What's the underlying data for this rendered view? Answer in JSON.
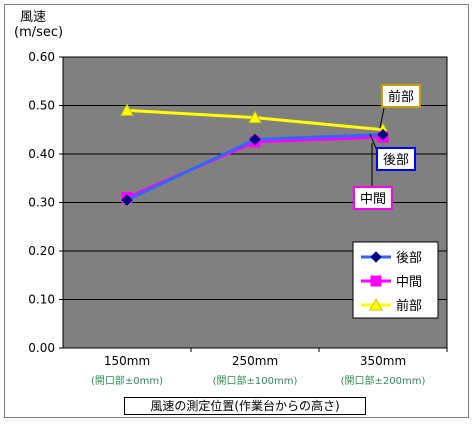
{
  "chart_data": {
    "type": "line",
    "ylabel_line1": "風速",
    "ylabel_line2": "(m/sec)",
    "xlabel": "風速の測定位置(作業台からの高さ)",
    "ylim": [
      0,
      0.6
    ],
    "y_ticks": [
      "0.00",
      "0.10",
      "0.20",
      "0.30",
      "0.40",
      "0.50",
      "0.60"
    ],
    "categories": [
      "150mm",
      "250mm",
      "350mm"
    ],
    "category_notes": [
      "(開口部±0mm)",
      "(開口部±100mm)",
      "(開口部±200mm)"
    ],
    "grid": true,
    "legend_position": "right",
    "series": [
      {
        "name": "後部",
        "values": [
          0.305,
          0.43,
          0.44
        ],
        "color": "#3366ff",
        "marker": "diamond",
        "marker_color": "#000080"
      },
      {
        "name": "中間",
        "values": [
          0.31,
          0.425,
          0.435
        ],
        "color": "#ff00ff",
        "marker": "square",
        "marker_color": "#ff00ff"
      },
      {
        "name": "前部",
        "values": [
          0.49,
          0.475,
          0.45
        ],
        "color": "#ffff00",
        "marker": "triangle",
        "marker_color": "#ffff00"
      }
    ],
    "callouts": [
      {
        "text": "前部",
        "color": "#c8a000"
      },
      {
        "text": "後部",
        "color": "#0000ff"
      },
      {
        "text": "中間",
        "color": "#ff00ff"
      }
    ]
  }
}
